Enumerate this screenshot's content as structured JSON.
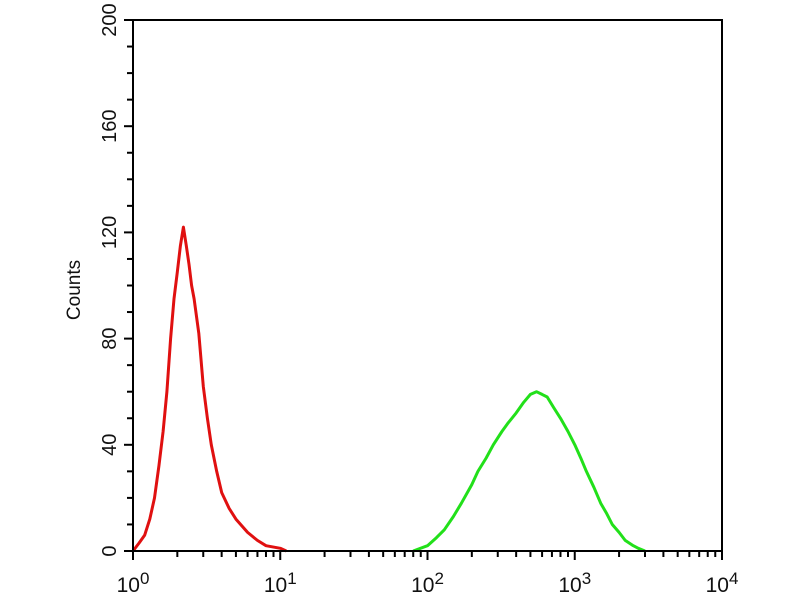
{
  "chart_data": {
    "type": "line",
    "title": "",
    "xlabel": "",
    "ylabel": "Counts",
    "xscale": "log",
    "xlim": [
      1,
      10000
    ],
    "ylim": [
      0,
      200
    ],
    "x_ticks": [
      {
        "base": "10",
        "exp": "0"
      },
      {
        "base": "10",
        "exp": "1"
      },
      {
        "base": "10",
        "exp": "2"
      },
      {
        "base": "10",
        "exp": "3"
      },
      {
        "base": "10",
        "exp": "4"
      }
    ],
    "y_ticks": [
      "0",
      "40",
      "80",
      "120",
      "160",
      "200"
    ],
    "grid": false,
    "series": [
      {
        "color": "#e01010",
        "points": [
          [
            1,
            0
          ],
          [
            1.1,
            3
          ],
          [
            1.2,
            6
          ],
          [
            1.3,
            12
          ],
          [
            1.4,
            20
          ],
          [
            1.5,
            32
          ],
          [
            1.6,
            45
          ],
          [
            1.7,
            60
          ],
          [
            1.8,
            80
          ],
          [
            1.9,
            95
          ],
          [
            2.0,
            105
          ],
          [
            2.1,
            115
          ],
          [
            2.2,
            122
          ],
          [
            2.3,
            115
          ],
          [
            2.4,
            108
          ],
          [
            2.5,
            100
          ],
          [
            2.6,
            95
          ],
          [
            2.8,
            82
          ],
          [
            3.0,
            62
          ],
          [
            3.2,
            50
          ],
          [
            3.4,
            40
          ],
          [
            3.7,
            30
          ],
          [
            4,
            22
          ],
          [
            4.5,
            16
          ],
          [
            5,
            12
          ],
          [
            6,
            7
          ],
          [
            7,
            4
          ],
          [
            8,
            2
          ],
          [
            10,
            1
          ],
          [
            11,
            0
          ]
        ]
      },
      {
        "color": "#22e01a",
        "points": [
          [
            80,
            0
          ],
          [
            100,
            2
          ],
          [
            115,
            5
          ],
          [
            130,
            8
          ],
          [
            150,
            13
          ],
          [
            170,
            18
          ],
          [
            200,
            25
          ],
          [
            220,
            30
          ],
          [
            250,
            35
          ],
          [
            280,
            40
          ],
          [
            320,
            45
          ],
          [
            350,
            48
          ],
          [
            400,
            52
          ],
          [
            450,
            56
          ],
          [
            500,
            59
          ],
          [
            550,
            60
          ],
          [
            600,
            59
          ],
          [
            650,
            58
          ],
          [
            720,
            54
          ],
          [
            800,
            50
          ],
          [
            900,
            45
          ],
          [
            1000,
            40
          ],
          [
            1100,
            35
          ],
          [
            1200,
            30
          ],
          [
            1350,
            24
          ],
          [
            1500,
            18
          ],
          [
            1650,
            14
          ],
          [
            1800,
            10
          ],
          [
            2000,
            7
          ],
          [
            2200,
            4
          ],
          [
            2500,
            2
          ],
          [
            2700,
            1
          ],
          [
            3000,
            0
          ]
        ]
      }
    ]
  }
}
